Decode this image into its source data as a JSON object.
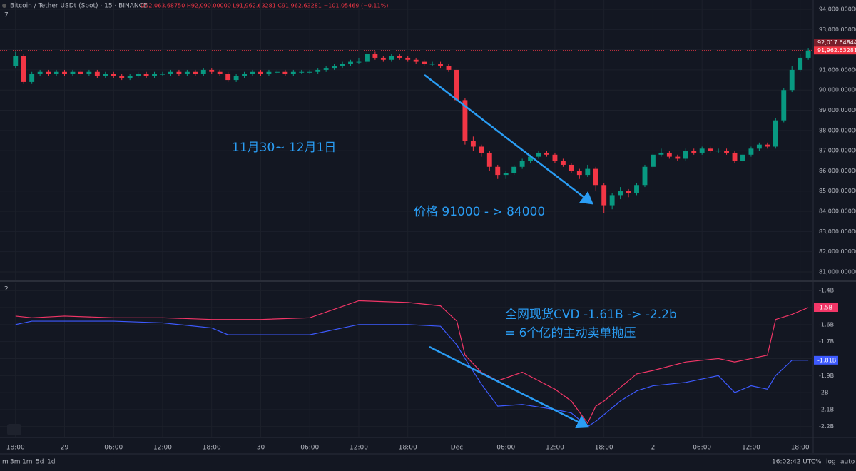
{
  "header": {
    "title": "Bitcoin / Tether USDt (Spot) · 15 · BINANCE",
    "ohlc": "O92,063.68750 H92,090.00000 L91,962.63281 C91,962.63281 −101.05469 (−0.11%)"
  },
  "toolbar": {
    "ranges": [
      "m",
      "3m",
      "1m",
      "5d",
      "1d"
    ],
    "clock": "16:02:42 UTC",
    "options": [
      "%",
      "log",
      "auto"
    ]
  },
  "chart_data": [
    {
      "type": "candlestick",
      "pane_label": "7",
      "annotations": [
        "11月30~ 12月1日",
        "价格 91000 - > 84000"
      ],
      "marker_labels": [
        "92,017.64844",
        "91,962.63281"
      ],
      "up_color": "#089981",
      "down_color": "#f23645",
      "grid": true,
      "xlim": [
        16.1,
        115.6
      ],
      "ylim": [
        80610,
        94460
      ],
      "yticks": [
        {
          "value": 81000,
          "label": "81,000.00000"
        },
        {
          "value": 82000,
          "label": "82,000.00000"
        },
        {
          "value": 83000,
          "label": "83,000.00000"
        },
        {
          "value": 84000,
          "label": "84,000.00000"
        },
        {
          "value": 85000,
          "label": "85,000.00000"
        },
        {
          "value": 86000,
          "label": "86,000.00000"
        },
        {
          "value": 87000,
          "label": "87,000.00000"
        },
        {
          "value": 88000,
          "label": "88,000.00000"
        },
        {
          "value": 89000,
          "label": "89,000.00000"
        },
        {
          "value": 90000,
          "label": "90,000.00000"
        },
        {
          "value": 91000,
          "label": "91,000.00000"
        },
        {
          "value": 92000,
          "label": "92,000.00000"
        },
        {
          "value": 93000,
          "label": "93,000.00000"
        },
        {
          "value": 94000,
          "label": "94,000.00000"
        }
      ],
      "x": [
        18,
        19,
        20,
        21,
        22,
        23,
        24,
        25,
        26,
        27,
        28,
        29,
        30,
        31,
        32,
        33,
        34,
        35,
        36,
        37,
        38,
        39,
        40,
        41,
        42,
        43,
        44,
        45,
        46,
        47,
        48,
        49,
        50,
        51,
        52,
        53,
        54,
        55,
        56,
        57,
        58,
        59,
        60,
        61,
        62,
        63,
        64,
        65,
        66,
        67,
        68,
        69,
        70,
        71,
        72,
        73,
        74,
        75,
        76,
        77,
        78,
        79,
        80,
        81,
        82,
        83,
        84,
        85,
        86,
        87,
        88,
        89,
        90,
        91,
        92,
        93,
        94,
        95,
        96,
        97,
        98,
        99,
        100,
        101,
        102,
        103,
        104,
        105,
        106,
        107,
        108,
        109,
        110,
        111,
        112,
        113,
        114,
        115
      ],
      "open": [
        91200,
        91700,
        90400,
        90800,
        90900,
        90800,
        90900,
        90800,
        90900,
        90800,
        90900,
        90700,
        90800,
        90700,
        90600,
        90700,
        90800,
        90700,
        90800,
        90800,
        90900,
        90800,
        90900,
        90800,
        91000,
        90900,
        90800,
        90500,
        90700,
        90800,
        90900,
        90800,
        90900,
        90900,
        90800,
        90900,
        90900,
        90900,
        91000,
        91100,
        91200,
        91300,
        91400,
        91400,
        91800,
        91600,
        91500,
        91700,
        91600,
        91500,
        91400,
        91300,
        91300,
        91200,
        91000,
        89500,
        87500,
        87200,
        86900,
        86200,
        85800,
        85900,
        86200,
        86500,
        86700,
        86900,
        86800,
        86500,
        86300,
        86000,
        85800,
        86100,
        85300,
        84300,
        84800,
        85000,
        84900,
        85300,
        86200,
        86800,
        86900,
        86700,
        86600,
        87000,
        86900,
        87100,
        87000,
        87000,
        86900,
        86500,
        86800,
        87100,
        87300,
        87200,
        88500,
        90000,
        91000,
        91600
      ],
      "high": [
        91900,
        91800,
        90900,
        91000,
        91000,
        91000,
        91000,
        91000,
        91000,
        91000,
        91000,
        90900,
        90900,
        90800,
        90800,
        90900,
        90900,
        90900,
        90900,
        91000,
        91000,
        91000,
        91000,
        91100,
        91100,
        91000,
        90900,
        90800,
        90900,
        91000,
        91000,
        91000,
        91000,
        91000,
        91000,
        91000,
        91000,
        91100,
        91200,
        91300,
        91400,
        91500,
        91600,
        91900,
        91900,
        91700,
        91800,
        91800,
        91700,
        91600,
        91500,
        91400,
        91400,
        91300,
        91100,
        89600,
        87700,
        87300,
        87000,
        86300,
        86000,
        86300,
        86600,
        86800,
        87000,
        87000,
        86900,
        86600,
        86400,
        86100,
        86300,
        86200,
        85400,
        84900,
        85200,
        85100,
        85400,
        86300,
        86900,
        87100,
        87000,
        86800,
        87100,
        87100,
        87200,
        87200,
        87100,
        87100,
        87000,
        86900,
        87200,
        87400,
        87400,
        88600,
        90100,
        91200,
        91800,
        92090
      ],
      "low": [
        91100,
        90300,
        90300,
        90700,
        90700,
        90700,
        90700,
        90700,
        90700,
        90700,
        90600,
        90600,
        90600,
        90500,
        90500,
        90600,
        90600,
        90600,
        90700,
        90700,
        90700,
        90700,
        90700,
        90700,
        90800,
        90700,
        90400,
        90400,
        90600,
        90700,
        90700,
        90700,
        90800,
        90700,
        90700,
        90800,
        90800,
        90800,
        90900,
        91000,
        91100,
        91200,
        91300,
        91300,
        91500,
        91400,
        91400,
        91500,
        91400,
        91300,
        91200,
        91200,
        91100,
        90900,
        89300,
        87300,
        87000,
        86700,
        86000,
        85600,
        85600,
        85800,
        86100,
        86400,
        86600,
        86700,
        86400,
        86200,
        85900,
        85600,
        85700,
        85000,
        83900,
        84100,
        84600,
        84700,
        84800,
        85200,
        86100,
        86700,
        86600,
        86500,
        86500,
        86800,
        86800,
        86900,
        86900,
        86800,
        86400,
        86400,
        86700,
        87000,
        87100,
        87100,
        88400,
        89900,
        90900,
        91500
      ],
      "close": [
        91700,
        90400,
        90800,
        90900,
        90800,
        90900,
        90800,
        90900,
        90800,
        90900,
        90700,
        90800,
        90700,
        90600,
        90700,
        90800,
        90700,
        90800,
        90800,
        90900,
        90800,
        90900,
        90800,
        91000,
        90900,
        90800,
        90500,
        90700,
        90800,
        90900,
        90800,
        90900,
        90900,
        90800,
        90900,
        90900,
        90900,
        91000,
        91100,
        91200,
        91300,
        91400,
        91400,
        91800,
        91600,
        91500,
        91700,
        91600,
        91500,
        91400,
        91300,
        91300,
        91200,
        91000,
        89500,
        87500,
        87200,
        86900,
        86200,
        85800,
        85900,
        86200,
        86500,
        86700,
        86900,
        86800,
        86500,
        86300,
        86000,
        85800,
        86100,
        85300,
        84300,
        84800,
        85000,
        84900,
        85300,
        86200,
        86800,
        86900,
        86700,
        86600,
        87000,
        86900,
        87100,
        87000,
        87000,
        86900,
        86500,
        86800,
        87100,
        87300,
        87200,
        88500,
        90000,
        91000,
        91600,
        91962
      ]
    },
    {
      "type": "line",
      "pane_label": "2",
      "annotations": [
        "全网现货CVD  -1.61B -> -2.2b",
        "= 6个亿的主动卖单抛压"
      ],
      "grid": true,
      "xlim": [
        16.1,
        115.6
      ],
      "ylim": [
        -2.26,
        -1.353
      ],
      "yticks": [
        {
          "value": -1.4,
          "label": "-1.4B"
        },
        {
          "value": -1.5,
          "label": "-1.5B"
        },
        {
          "value": -1.6,
          "label": "-1.6B"
        },
        {
          "value": -1.7,
          "label": "-1.7B"
        },
        {
          "value": -1.8,
          "label": "-1.8B"
        },
        {
          "value": -1.9,
          "label": "-1.9B"
        },
        {
          "value": -2,
          "label": "-2B"
        },
        {
          "value": -2.1,
          "label": "-2.1B"
        },
        {
          "value": -2.2,
          "label": "-2.2B"
        }
      ],
      "xticks": [
        {
          "value": 18,
          "label": "18:00"
        },
        {
          "value": 24,
          "label": "29"
        },
        {
          "value": 30,
          "label": "06:00"
        },
        {
          "value": 36,
          "label": "12:00"
        },
        {
          "value": 42,
          "label": "18:00"
        },
        {
          "value": 48,
          "label": "30"
        },
        {
          "value": 54,
          "label": "06:00"
        },
        {
          "value": 60,
          "label": "12:00"
        },
        {
          "value": 66,
          "label": "18:00"
        },
        {
          "value": 72,
          "label": "Dec"
        },
        {
          "value": 78,
          "label": "06:00"
        },
        {
          "value": 84,
          "label": "12:00"
        },
        {
          "value": 90,
          "label": "18:00"
        },
        {
          "value": 96,
          "label": "2"
        },
        {
          "value": 102,
          "label": "06:00"
        },
        {
          "value": 108,
          "label": "12:00"
        },
        {
          "value": 114,
          "label": "18:00"
        }
      ],
      "x": [
        18,
        20,
        24,
        30,
        36,
        42,
        44,
        48,
        54,
        60,
        66,
        70,
        72,
        73,
        75,
        77,
        80,
        84,
        86,
        88,
        89,
        90,
        92,
        94,
        96,
        100,
        104,
        106,
        108,
        110,
        111,
        113,
        115
      ],
      "series": [
        {
          "color": "#f23667",
          "values": [
            -1.55,
            -1.56,
            -1.55,
            -1.56,
            -1.56,
            -1.57,
            -1.57,
            -1.57,
            -1.56,
            -1.46,
            -1.47,
            -1.49,
            -1.58,
            -1.78,
            -1.88,
            -1.93,
            -1.88,
            -1.98,
            -2.05,
            -2.18,
            -2.08,
            -2.05,
            -1.97,
            -1.89,
            -1.87,
            -1.82,
            -1.8,
            -1.82,
            -1.8,
            -1.78,
            -1.57,
            -1.54,
            -1.5
          ],
          "value_labels": [
            null,
            null,
            null,
            null,
            null,
            null,
            null,
            null,
            null,
            null,
            null,
            null,
            null,
            null,
            null,
            null,
            null,
            null,
            null,
            null,
            null,
            null,
            null,
            null,
            null,
            null,
            null,
            null,
            null,
            null,
            null,
            null,
            "-1.5B"
          ]
        },
        {
          "color": "#3d5afe",
          "values": [
            -1.6,
            -1.58,
            -1.58,
            -1.58,
            -1.59,
            -1.62,
            -1.66,
            -1.66,
            -1.66,
            -1.6,
            -1.6,
            -1.61,
            -1.72,
            -1.8,
            -1.95,
            -2.08,
            -2.07,
            -2.1,
            -2.12,
            -2.2,
            -2.17,
            -2.13,
            -2.05,
            -1.99,
            -1.96,
            -1.94,
            -1.9,
            -2,
            -1.96,
            -1.98,
            -1.9,
            -1.81,
            -1.81
          ],
          "value_labels": [
            null,
            null,
            null,
            null,
            null,
            null,
            null,
            null,
            null,
            null,
            null,
            null,
            null,
            null,
            null,
            null,
            null,
            null,
            null,
            null,
            null,
            null,
            null,
            null,
            null,
            null,
            null,
            null,
            null,
            null,
            null,
            null,
            "-1.81B"
          ]
        }
      ]
    }
  ]
}
